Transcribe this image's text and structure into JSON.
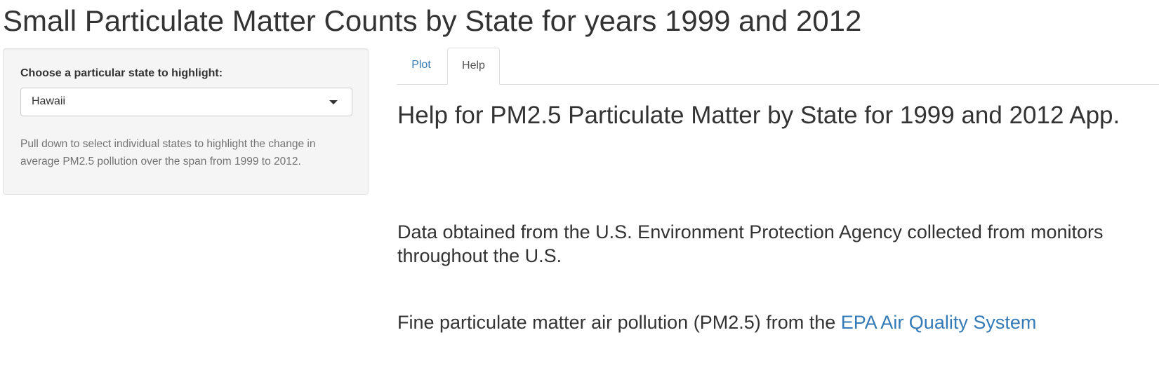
{
  "page": {
    "title": "Small Particulate Matter Counts by State for years 1999 and 2012"
  },
  "sidebar": {
    "select_label": "Choose a particular state to highlight:",
    "select_value": "Hawaii",
    "help_text": "Pull down to select individual states to highlight the change in average PM2.5 pollution over the span from 1999 to 2012."
  },
  "tabs": [
    {
      "label": "Plot",
      "active": false
    },
    {
      "label": "Help",
      "active": true
    }
  ],
  "main": {
    "heading": "Help for PM2.5 Particulate Matter by State for 1999 and 2012 App.",
    "paragraph_1": "Data obtained from the U.S. Environment Protection Agency collected from monitors throughout the U.S.",
    "paragraph_2_prefix": "Fine particulate matter air pollution (PM2.5) from the ",
    "paragraph_2_link": "EPA Air Quality System"
  },
  "colors": {
    "link": "#337ab7",
    "text": "#333333",
    "well_background": "#f5f5f5",
    "help_text": "#737373"
  },
  "icons": {
    "select_caret": "caret-down-icon"
  }
}
